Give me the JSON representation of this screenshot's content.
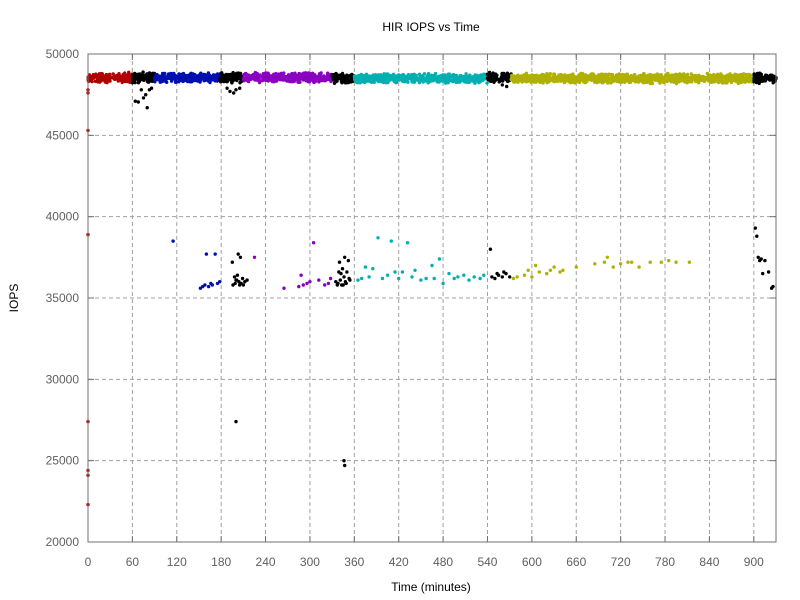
{
  "chart_data": {
    "type": "scatter",
    "title": "HIR IOPS vs Time",
    "xlabel": "Time (minutes)",
    "ylabel": "IOPS",
    "xlim": [
      0,
      930
    ],
    "ylim": [
      20000,
      50000
    ],
    "x_ticks": [
      0,
      60,
      120,
      180,
      240,
      300,
      360,
      420,
      480,
      540,
      600,
      660,
      720,
      780,
      840,
      900
    ],
    "y_ticks": [
      20000,
      25000,
      30000,
      35000,
      40000,
      45000,
      50000
    ],
    "grid": true,
    "legend": "none",
    "bands": [
      {
        "color": "#b00000",
        "x_start": 0,
        "x_end": 60,
        "y_center": 48550,
        "y_spread": 250
      },
      {
        "color": "#000000",
        "x_start": 60,
        "x_end": 90,
        "y_center": 48550,
        "y_spread": 250
      },
      {
        "color": "#0010b0",
        "x_start": 90,
        "x_end": 178,
        "y_center": 48550,
        "y_spread": 230
      },
      {
        "color": "#000000",
        "x_start": 178,
        "x_end": 210,
        "y_center": 48550,
        "y_spread": 250
      },
      {
        "color": "#8a00c0",
        "x_start": 210,
        "x_end": 330,
        "y_center": 48550,
        "y_spread": 230
      },
      {
        "color": "#000000",
        "x_start": 330,
        "x_end": 360,
        "y_center": 48500,
        "y_spread": 250
      },
      {
        "color": "#00b0b0",
        "x_start": 360,
        "x_end": 540,
        "y_center": 48500,
        "y_spread": 230
      },
      {
        "color": "#000000",
        "x_start": 540,
        "x_end": 572,
        "y_center": 48550,
        "y_spread": 250
      },
      {
        "color": "#b0b000",
        "x_start": 572,
        "x_end": 900,
        "y_center": 48500,
        "y_spread": 230
      },
      {
        "color": "#000000",
        "x_start": 900,
        "x_end": 930,
        "y_center": 48500,
        "y_spread": 250
      }
    ],
    "series": [
      {
        "color": "#b00000",
        "points": [
          [
            0,
            47800
          ],
          [
            0,
            47600
          ],
          [
            0,
            45300
          ],
          [
            0,
            38900
          ],
          [
            0,
            27400
          ],
          [
            0,
            24400
          ],
          [
            0,
            24100
          ],
          [
            0,
            22300
          ]
        ]
      },
      {
        "color": "#000000",
        "points": [
          [
            64,
            47100
          ],
          [
            68,
            47050
          ],
          [
            72,
            47800
          ],
          [
            75,
            47300
          ],
          [
            78,
            47500
          ],
          [
            80,
            46700
          ],
          [
            83,
            47800
          ],
          [
            86,
            47900
          ],
          [
            188,
            47900
          ],
          [
            192,
            47700
          ],
          [
            197,
            47600
          ],
          [
            200,
            47800
          ],
          [
            205,
            47900
          ],
          [
            560,
            48100
          ],
          [
            566,
            48000
          ],
          [
            195,
            37200
          ],
          [
            200,
            36100
          ],
          [
            202,
            36400
          ],
          [
            204,
            36000
          ],
          [
            205,
            35800
          ],
          [
            206,
            37500
          ],
          [
            207,
            35900
          ],
          [
            209,
            36200
          ],
          [
            210,
            35800
          ],
          [
            212,
            36000
          ],
          [
            215,
            36100
          ],
          [
            196,
            35800
          ],
          [
            199,
            35900
          ],
          [
            201,
            36100
          ],
          [
            203,
            37700
          ],
          [
            198,
            36300
          ],
          [
            200,
            27400
          ],
          [
            335,
            36000
          ],
          [
            338,
            35900
          ],
          [
            340,
            37200
          ],
          [
            342,
            36500
          ],
          [
            344,
            36800
          ],
          [
            345,
            35800
          ],
          [
            347,
            37500
          ],
          [
            348,
            36000
          ],
          [
            350,
            36600
          ],
          [
            352,
            37300
          ],
          [
            354,
            36100
          ],
          [
            337,
            35800
          ],
          [
            346,
            36300
          ],
          [
            349,
            35900
          ],
          [
            353,
            36200
          ],
          [
            341,
            36100
          ],
          [
            339,
            36600
          ],
          [
            343,
            35800
          ],
          [
            346,
            25000
          ],
          [
            347,
            24700
          ],
          [
            544,
            38000
          ],
          [
            546,
            36300
          ],
          [
            550,
            36200
          ],
          [
            555,
            36400
          ],
          [
            560,
            36300
          ],
          [
            562,
            36600
          ],
          [
            565,
            36500
          ],
          [
            570,
            36300
          ],
          [
            553,
            36500
          ],
          [
            902,
            39300
          ],
          [
            904,
            38800
          ],
          [
            906,
            37500
          ],
          [
            908,
            37300
          ],
          [
            910,
            37400
          ],
          [
            912,
            36500
          ],
          [
            915,
            37300
          ],
          [
            920,
            36600
          ],
          [
            924,
            35600
          ],
          [
            926,
            35700
          ]
        ]
      },
      {
        "color": "#0010b0",
        "points": [
          [
            115,
            38500
          ],
          [
            152,
            35600
          ],
          [
            155,
            35700
          ],
          [
            158,
            35800
          ],
          [
            160,
            37700
          ],
          [
            163,
            35700
          ],
          [
            166,
            35900
          ],
          [
            168,
            35800
          ],
          [
            172,
            37700
          ],
          [
            175,
            35900
          ],
          [
            178,
            36000
          ]
        ]
      },
      {
        "color": "#8a00c0",
        "points": [
          [
            225,
            37500
          ],
          [
            265,
            35600
          ],
          [
            285,
            35700
          ],
          [
            288,
            36400
          ],
          [
            291,
            35800
          ],
          [
            296,
            35900
          ],
          [
            300,
            36000
          ],
          [
            305,
            38400
          ],
          [
            312,
            36100
          ],
          [
            320,
            35800
          ],
          [
            325,
            35900
          ],
          [
            328,
            36200
          ]
        ]
      },
      {
        "color": "#00b0b0",
        "points": [
          [
            365,
            36100
          ],
          [
            370,
            36200
          ],
          [
            375,
            36900
          ],
          [
            380,
            36300
          ],
          [
            385,
            36800
          ],
          [
            392,
            38700
          ],
          [
            398,
            36200
          ],
          [
            405,
            36400
          ],
          [
            410,
            38500
          ],
          [
            415,
            36600
          ],
          [
            420,
            36200
          ],
          [
            425,
            36600
          ],
          [
            432,
            38400
          ],
          [
            438,
            36300
          ],
          [
            442,
            36700
          ],
          [
            450,
            36100
          ],
          [
            457,
            36200
          ],
          [
            465,
            37000
          ],
          [
            468,
            36200
          ],
          [
            475,
            37400
          ],
          [
            480,
            35900
          ],
          [
            488,
            36500
          ],
          [
            495,
            36200
          ],
          [
            500,
            36300
          ],
          [
            508,
            36400
          ],
          [
            515,
            36100
          ],
          [
            522,
            36300
          ],
          [
            530,
            36200
          ],
          [
            535,
            36400
          ]
        ]
      },
      {
        "color": "#b0b000",
        "points": [
          [
            575,
            36200
          ],
          [
            580,
            36300
          ],
          [
            590,
            36400
          ],
          [
            595,
            36700
          ],
          [
            600,
            36300
          ],
          [
            605,
            37000
          ],
          [
            610,
            36600
          ],
          [
            620,
            36500
          ],
          [
            625,
            36700
          ],
          [
            630,
            36900
          ],
          [
            638,
            36600
          ],
          [
            642,
            36700
          ],
          [
            660,
            36900
          ],
          [
            685,
            37100
          ],
          [
            698,
            37200
          ],
          [
            702,
            37500
          ],
          [
            710,
            36900
          ],
          [
            720,
            37100
          ],
          [
            730,
            37200
          ],
          [
            735,
            37200
          ],
          [
            745,
            36900
          ],
          [
            760,
            37200
          ],
          [
            775,
            37200
          ],
          [
            785,
            37300
          ],
          [
            795,
            37200
          ],
          [
            813,
            37200
          ]
        ]
      }
    ]
  }
}
